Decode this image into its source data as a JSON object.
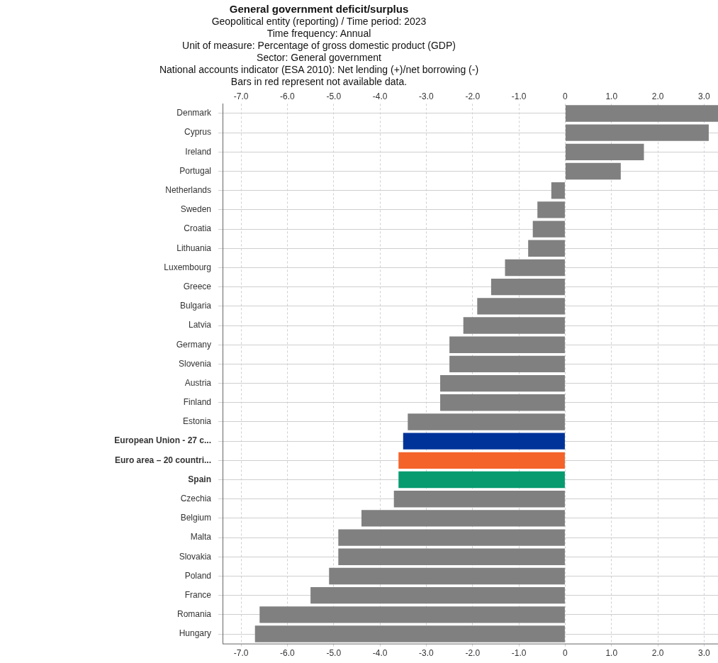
{
  "chart_data": {
    "type": "bar",
    "orientation": "horizontal",
    "title": "General government deficit/surplus",
    "subtitle": "Geopolitical entity (reporting) / Time period: 2023\nTime frequency: Annual\nUnit of measure: Percentage of gross domestic product (GDP)\nSector: General government\nNational accounts indicator (ESA 2010): Net lending (+)/net borrowing (-)\nBars in red represent not available data.",
    "categories": [
      "Denmark",
      "Cyprus",
      "Ireland",
      "Portugal",
      "Netherlands",
      "Sweden",
      "Croatia",
      "Lithuania",
      "Luxembourg",
      "Greece",
      "Bulgaria",
      "Latvia",
      "Germany",
      "Slovenia",
      "Austria",
      "Finland",
      "Estonia",
      "European Union - 27 c...",
      "Euro area – 20 countri...",
      "Spain",
      "Czechia",
      "Belgium",
      "Malta",
      "Slovakia",
      "Poland",
      "France",
      "Romania",
      "Hungary"
    ],
    "values": [
      3.3,
      3.1,
      1.7,
      1.2,
      -0.3,
      -0.6,
      -0.7,
      -0.8,
      -1.3,
      -1.6,
      -1.9,
      -2.2,
      -2.5,
      -2.5,
      -2.7,
      -2.7,
      -3.4,
      -3.5,
      -3.6,
      -3.6,
      -3.7,
      -4.4,
      -4.9,
      -4.9,
      -5.1,
      -5.5,
      -6.6,
      -6.7
    ],
    "colors": [
      "#808080",
      "#808080",
      "#808080",
      "#808080",
      "#808080",
      "#808080",
      "#808080",
      "#808080",
      "#808080",
      "#808080",
      "#808080",
      "#808080",
      "#808080",
      "#808080",
      "#808080",
      "#808080",
      "#808080",
      "#003399",
      "#f4632a",
      "#079b6f",
      "#808080",
      "#808080",
      "#808080",
      "#808080",
      "#808080",
      "#808080",
      "#808080",
      "#808080"
    ],
    "xlim": [
      -7.4,
      3.3
    ],
    "xticks": [
      {
        "value": -7,
        "label": "-7.0"
      },
      {
        "value": -6,
        "label": "-6.0"
      },
      {
        "value": -5,
        "label": "-5.0"
      },
      {
        "value": -4,
        "label": "-4.0"
      },
      {
        "value": -3,
        "label": "-3.0"
      },
      {
        "value": -2,
        "label": "-2.0"
      },
      {
        "value": -1,
        "label": "-1.0"
      },
      0,
      {
        "value": 1,
        "label": "1.0"
      },
      {
        "value": 2,
        "label": "2.0"
      },
      {
        "value": 3,
        "label": "3.0"
      }
    ],
    "x2lim": [
      -7.4,
      3.3
    ],
    "x2ticks": [
      {
        "value": -7,
        "label": "-7.0"
      },
      {
        "value": -6,
        "label": "-6.0"
      },
      {
        "value": -5,
        "label": "-5.0"
      },
      {
        "value": -4,
        "label": "-4.0"
      },
      {
        "value": -3,
        "label": "-3.0"
      },
      {
        "value": -2,
        "label": "-2.0"
      },
      {
        "value": -1,
        "label": "-1.0"
      },
      0,
      {
        "value": 1,
        "label": "1.0"
      },
      {
        "value": 2,
        "label": "2.0"
      },
      {
        "value": 3,
        "label": "3.0"
      }
    ],
    "grid": true,
    "legend": false
  }
}
